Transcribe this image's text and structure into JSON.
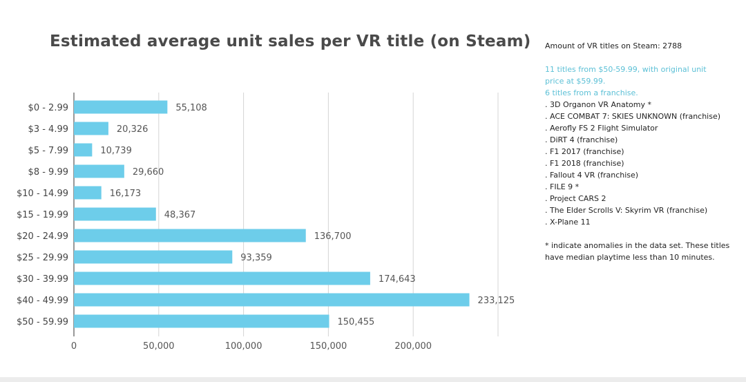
{
  "chart_data": {
    "type": "bar",
    "orientation": "horizontal",
    "title": "Estimated average unit sales per VR title (on Steam)",
    "xlabel": "",
    "ylabel": "",
    "categories": [
      "$0 - 2.99",
      "$3 - 4.99",
      "$5 - 7.99",
      "$8 - 9.99",
      "$10 - 14.99",
      "$15 - 19.99",
      "$20 - 24.99",
      "$25 - 29.99",
      "$30 - 39.99",
      "$40 - 49.99",
      "$50 - 59.99"
    ],
    "values": [
      55108,
      20326,
      10739,
      29660,
      16173,
      48367,
      136700,
      93359,
      174643,
      233125,
      150455
    ],
    "value_labels": [
      "55,108",
      "20,326",
      "10,739",
      "29,660",
      "16,173",
      "48,367",
      "136,700",
      "93,359",
      "174,643",
      "233,125",
      "150,455"
    ],
    "xlim": [
      0,
      250000
    ],
    "xticks": [
      0,
      50000,
      100000,
      150000,
      200000
    ],
    "xtick_labels": [
      "0",
      "50,000",
      "100,000",
      "150,000",
      "200,000"
    ],
    "grid": true,
    "bar_color": "#6dcdea"
  },
  "sidebar": {
    "total_line": "Amount of VR titles on Steam: 2788",
    "highlight_lines": [
      "11 titles from $50-59.99, with original unit",
      "price at $59.99.",
      "6 titles from a franchise."
    ],
    "titles": [
      ". 3D Organon VR Anatomy *",
      ". ACE COMBAT 7: SKIES UNKNOWN (franchise)",
      ". Aerofly FS 2 Flight Simulator",
      ". DiRT 4 (franchise)",
      ". F1 2017 (franchise)",
      ". F1 2018 (franchise)",
      ". Fallout 4 VR (franchise)",
      ". FILE 9 *",
      ". Project CARS 2",
      ". The Elder Scrolls V: Skyrim VR (franchise)",
      ". X-Plane 11"
    ],
    "footnote_lines": [
      "* indicate anomalies in the data set. These titles",
      "have median playtime less than 10 minutes."
    ],
    "highlight_color": "#5cc0d6"
  }
}
